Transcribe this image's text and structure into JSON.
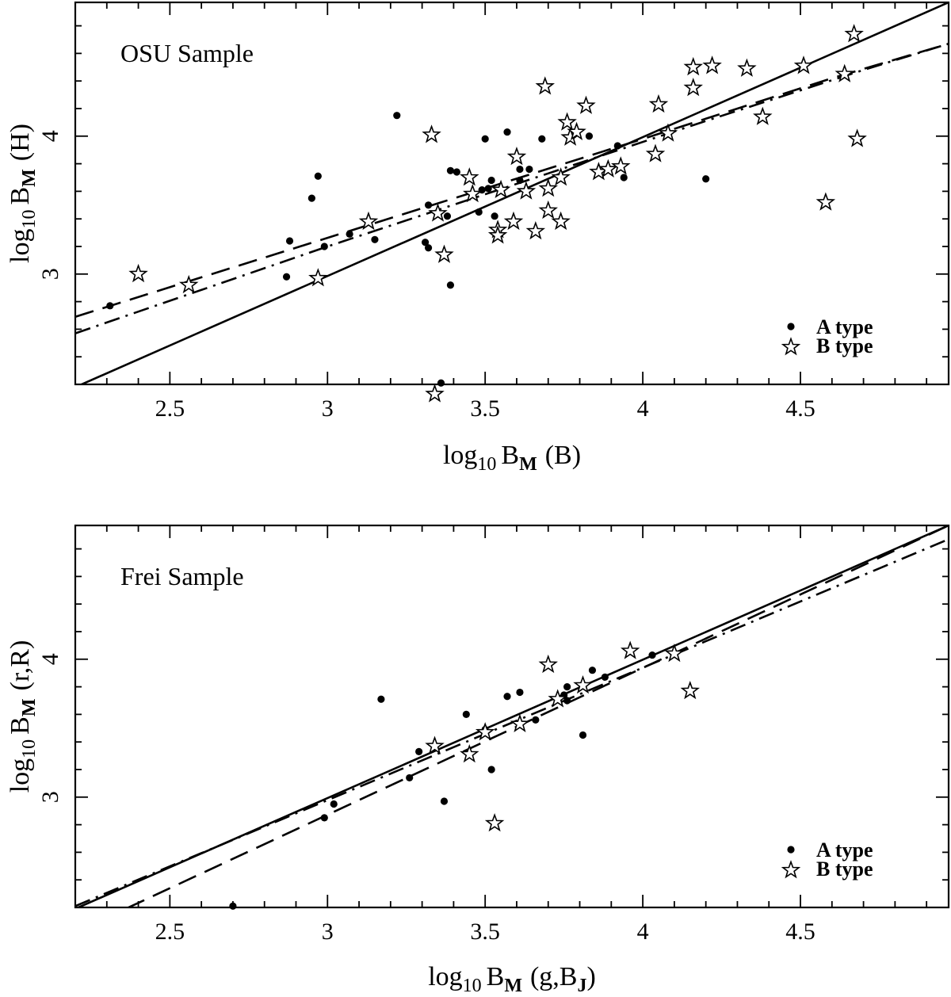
{
  "chart_data": [
    {
      "type": "scatter",
      "title": "OSU Sample",
      "xlabel": {
        "prefix": "log",
        "base": "10",
        "var": "B",
        "sub": "M",
        "band": "(B)"
      },
      "ylabel": {
        "prefix": "log",
        "base": "10",
        "var": "B",
        "sub": "M",
        "band": "(H)"
      },
      "xlim": [
        2.2,
        4.97
      ],
      "ylim": [
        2.2,
        4.97
      ],
      "xticks": [
        {
          "v": 2.5,
          "label": "2.5"
        },
        {
          "v": 3,
          "label": "3"
        },
        {
          "v": 3.5,
          "label": "3.5"
        },
        {
          "v": 4,
          "label": "4"
        },
        {
          "v": 4.5,
          "label": "4.5"
        }
      ],
      "yticks": [
        {
          "v": 3,
          "label": "3"
        },
        {
          "v": 4,
          "label": "4"
        }
      ],
      "legend": {
        "position": "bottom-right",
        "entries": [
          {
            "marker": "dot",
            "label": "A type"
          },
          {
            "marker": "star",
            "label": "B type"
          }
        ]
      },
      "series": [
        {
          "name": "A type",
          "marker": "dot",
          "points": [
            [
              2.31,
              2.77
            ],
            [
              2.87,
              2.98
            ],
            [
              2.88,
              3.24
            ],
            [
              2.95,
              3.55
            ],
            [
              2.97,
              3.71
            ],
            [
              2.99,
              3.2
            ],
            [
              3.07,
              3.29
            ],
            [
              3.15,
              3.25
            ],
            [
              3.22,
              4.15
            ],
            [
              3.31,
              3.23
            ],
            [
              3.32,
              3.19
            ],
            [
              3.32,
              3.5
            ],
            [
              3.36,
              2.21
            ],
            [
              3.38,
              3.42
            ],
            [
              3.39,
              2.92
            ],
            [
              3.39,
              3.75
            ],
            [
              3.41,
              3.74
            ],
            [
              3.46,
              3.58
            ],
            [
              3.48,
              3.45
            ],
            [
              3.49,
              3.61
            ],
            [
              3.5,
              3.98
            ],
            [
              3.51,
              3.62
            ],
            [
              3.52,
              3.68
            ],
            [
              3.53,
              3.42
            ],
            [
              3.57,
              4.03
            ],
            [
              3.61,
              3.76
            ],
            [
              3.61,
              3.68
            ],
            [
              3.64,
              3.76
            ],
            [
              3.68,
              3.98
            ],
            [
              3.83,
              4.0
            ],
            [
              3.92,
              3.93
            ],
            [
              3.94,
              3.7
            ],
            [
              4.2,
              3.69
            ]
          ]
        },
        {
          "name": "B type",
          "marker": "star",
          "points": [
            [
              2.4,
              3.0
            ],
            [
              2.56,
              2.92
            ],
            [
              2.97,
              2.97
            ],
            [
              3.13,
              3.38
            ],
            [
              3.33,
              4.01
            ],
            [
              3.34,
              2.13
            ],
            [
              3.35,
              3.44
            ],
            [
              3.37,
              3.14
            ],
            [
              3.45,
              3.7
            ],
            [
              3.46,
              3.58
            ],
            [
              3.54,
              3.32
            ],
            [
              3.54,
              3.28
            ],
            [
              3.55,
              3.61
            ],
            [
              3.59,
              3.38
            ],
            [
              3.6,
              3.85
            ],
            [
              3.63,
              3.6
            ],
            [
              3.66,
              3.31
            ],
            [
              3.69,
              4.36
            ],
            [
              3.7,
              3.46
            ],
            [
              3.7,
              3.62
            ],
            [
              3.74,
              3.7
            ],
            [
              3.74,
              3.38
            ],
            [
              3.76,
              4.1
            ],
            [
              3.77,
              3.99
            ],
            [
              3.79,
              4.03
            ],
            [
              3.82,
              4.22
            ],
            [
              3.86,
              3.74
            ],
            [
              3.89,
              3.76
            ],
            [
              3.93,
              3.78
            ],
            [
              4.04,
              3.87
            ],
            [
              4.05,
              4.23
            ],
            [
              4.08,
              4.02
            ],
            [
              4.16,
              4.35
            ],
            [
              4.16,
              4.5
            ],
            [
              4.22,
              4.51
            ],
            [
              4.33,
              4.49
            ],
            [
              4.38,
              4.14
            ],
            [
              4.51,
              4.51
            ],
            [
              4.58,
              3.52
            ],
            [
              4.64,
              4.45
            ],
            [
              4.67,
              4.74
            ],
            [
              4.68,
              3.98
            ]
          ]
        }
      ],
      "fits": [
        {
          "style": "solid",
          "x": [
            2.2,
            4.97
          ],
          "y": [
            2.18,
            4.97
          ]
        },
        {
          "style": "long-dash",
          "x": [
            2.2,
            3.5,
            4.0,
            4.6,
            4.97
          ],
          "y": [
            2.69,
            3.62,
            3.98,
            4.42,
            4.67
          ]
        },
        {
          "style": "dash-dot",
          "x": [
            2.2,
            3.0,
            3.7,
            4.2,
            4.7,
            4.97
          ],
          "y": [
            2.57,
            3.2,
            3.73,
            4.11,
            4.48,
            4.67
          ]
        }
      ]
    },
    {
      "type": "scatter",
      "title": "Frei Sample",
      "xlabel": {
        "prefix": "log",
        "base": "10",
        "var": "B",
        "sub": "M",
        "band": "(g,B",
        "band_sub": "J",
        "band_end": ")"
      },
      "ylabel": {
        "prefix": "log",
        "base": "10",
        "var": "B",
        "sub": "M",
        "band": "(r,R)"
      },
      "xlim": [
        2.2,
        4.97
      ],
      "ylim": [
        2.2,
        4.97
      ],
      "xticks": [
        {
          "v": 2.5,
          "label": "2.5"
        },
        {
          "v": 3,
          "label": "3"
        },
        {
          "v": 3.5,
          "label": "3.5"
        },
        {
          "v": 4,
          "label": "4"
        },
        {
          "v": 4.5,
          "label": "4.5"
        }
      ],
      "yticks": [
        {
          "v": 3,
          "label": "3"
        },
        {
          "v": 4,
          "label": "4"
        }
      ],
      "legend": {
        "position": "bottom-right",
        "entries": [
          {
            "marker": "dot",
            "label": "A type"
          },
          {
            "marker": "star",
            "label": "B type"
          }
        ]
      },
      "series": [
        {
          "name": "A type",
          "marker": "dot",
          "points": [
            [
              2.7,
              2.21
            ],
            [
              2.99,
              2.85
            ],
            [
              3.02,
              2.95
            ],
            [
              3.17,
              3.71
            ],
            [
              3.26,
              3.14
            ],
            [
              3.29,
              3.33
            ],
            [
              3.37,
              2.97
            ],
            [
              3.44,
              3.6
            ],
            [
              3.5,
              3.49
            ],
            [
              3.52,
              3.2
            ],
            [
              3.57,
              3.73
            ],
            [
              3.61,
              3.76
            ],
            [
              3.66,
              3.56
            ],
            [
              3.75,
              3.74
            ],
            [
              3.76,
              3.7
            ],
            [
              3.76,
              3.8
            ],
            [
              3.81,
              3.45
            ],
            [
              3.84,
              3.92
            ],
            [
              3.88,
              3.87
            ],
            [
              4.03,
              4.03
            ]
          ]
        },
        {
          "name": "B type",
          "marker": "star",
          "points": [
            [
              3.34,
              3.37
            ],
            [
              3.45,
              3.31
            ],
            [
              3.5,
              3.47
            ],
            [
              3.53,
              2.81
            ],
            [
              3.61,
              3.53
            ],
            [
              3.7,
              3.96
            ],
            [
              3.73,
              3.71
            ],
            [
              3.81,
              3.81
            ],
            [
              3.96,
              4.06
            ],
            [
              4.1,
              4.04
            ],
            [
              4.15,
              3.77
            ]
          ]
        }
      ],
      "fits": [
        {
          "style": "solid",
          "x": [
            2.2,
            4.97
          ],
          "y": [
            2.19,
            4.97
          ]
        },
        {
          "style": "long-dash",
          "x": [
            2.2,
            4.97
          ],
          "y": [
            2.02,
            4.97
          ]
        },
        {
          "style": "dash-dot",
          "x": [
            2.2,
            4.97
          ],
          "y": [
            2.21,
            4.87
          ]
        }
      ]
    }
  ]
}
